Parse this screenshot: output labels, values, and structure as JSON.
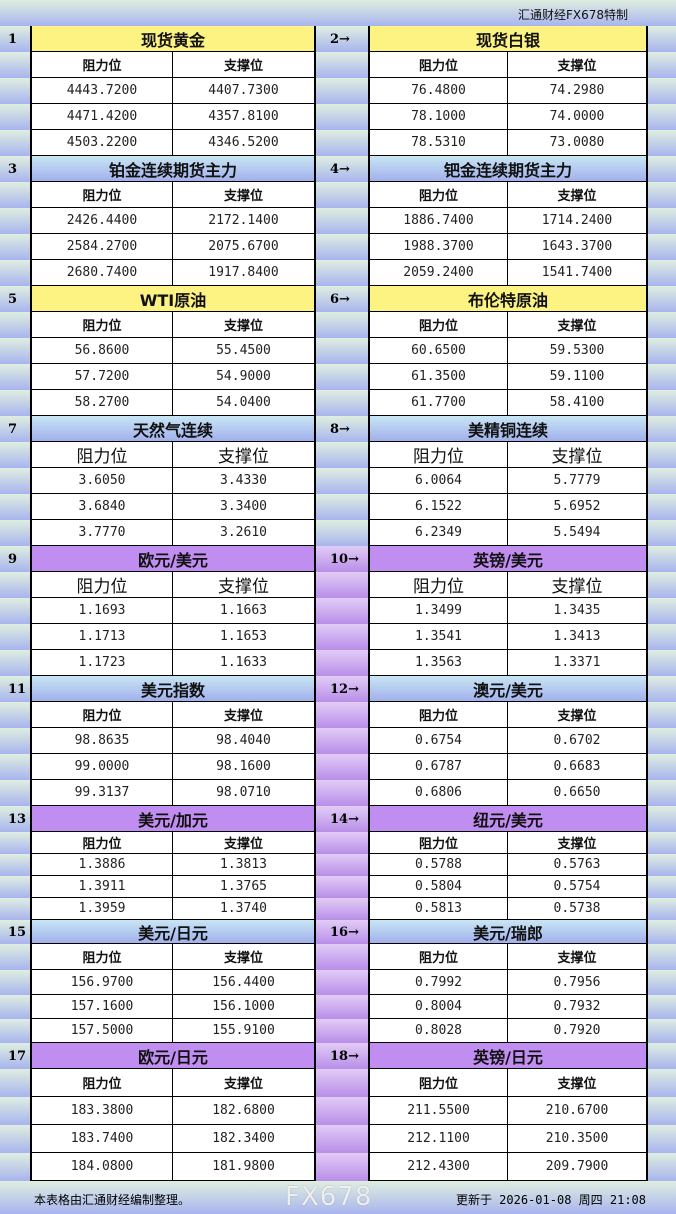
{
  "header": {
    "brand": "汇通财经FX678特制"
  },
  "col_headers": {
    "resistance": "阻力位",
    "support": "支撑位"
  },
  "sections": [
    {
      "num": "1",
      "title": "现货黄金",
      "color": "yellow",
      "rows": [
        [
          "4443.7200",
          "4407.7300"
        ],
        [
          "4471.4200",
          "4357.8100"
        ],
        [
          "4503.2200",
          "4346.5200"
        ]
      ]
    },
    {
      "num": "2→",
      "title": "现货白银",
      "color": "yellow",
      "rows": [
        [
          "76.4800",
          "74.2980"
        ],
        [
          "78.1000",
          "74.0000"
        ],
        [
          "78.5310",
          "73.0080"
        ]
      ]
    },
    {
      "num": "3",
      "title": "铂金连续期货主力",
      "color": "blue",
      "rows": [
        [
          "2426.4400",
          "2172.1400"
        ],
        [
          "2584.2700",
          "2075.6700"
        ],
        [
          "2680.7400",
          "1917.8400"
        ]
      ]
    },
    {
      "num": "4→",
      "title": "钯金连续期货主力",
      "color": "blue",
      "rows": [
        [
          "1886.7400",
          "1714.2400"
        ],
        [
          "1988.3700",
          "1643.3700"
        ],
        [
          "2059.2400",
          "1541.7400"
        ]
      ]
    },
    {
      "num": "5",
      "title": "WTI原油",
      "color": "yellow",
      "rows": [
        [
          "56.8600",
          "55.4500"
        ],
        [
          "57.7200",
          "54.9000"
        ],
        [
          "58.2700",
          "54.0400"
        ]
      ]
    },
    {
      "num": "6→",
      "title": "布伦特原油",
      "color": "yellow",
      "rows": [
        [
          "60.6500",
          "59.5300"
        ],
        [
          "61.3500",
          "59.1100"
        ],
        [
          "61.7700",
          "58.4100"
        ]
      ]
    },
    {
      "num": "7",
      "title": "天然气连续",
      "color": "blue",
      "rows": [
        [
          "3.6050",
          "3.4330"
        ],
        [
          "3.6840",
          "3.3400"
        ],
        [
          "3.7770",
          "3.2610"
        ]
      ]
    },
    {
      "num": "8→",
      "title": "美精铜连续",
      "color": "blue",
      "rows": [
        [
          "6.0064",
          "5.7779"
        ],
        [
          "6.1522",
          "5.6952"
        ],
        [
          "6.2349",
          "5.5494"
        ]
      ]
    },
    {
      "num": "9",
      "title": "欧元/美元",
      "color": "purple",
      "rows": [
        [
          "1.1693",
          "1.1663"
        ],
        [
          "1.1713",
          "1.1653"
        ],
        [
          "1.1723",
          "1.1633"
        ]
      ]
    },
    {
      "num": "10→",
      "title": "英镑/美元",
      "color": "purple",
      "rows": [
        [
          "1.3499",
          "1.3435"
        ],
        [
          "1.3541",
          "1.3413"
        ],
        [
          "1.3563",
          "1.3371"
        ]
      ]
    },
    {
      "num": "11",
      "title": "美元指数",
      "color": "blue",
      "rows": [
        [
          "98.8635",
          "98.4040"
        ],
        [
          "99.0000",
          "98.1600"
        ],
        [
          "99.3137",
          "98.0710"
        ]
      ]
    },
    {
      "num": "12→",
      "title": "澳元/美元",
      "color": "blue",
      "rows": [
        [
          "0.6754",
          "0.6702"
        ],
        [
          "0.6787",
          "0.6683"
        ],
        [
          "0.6806",
          "0.6650"
        ]
      ]
    },
    {
      "num": "13",
      "title": "美元/加元",
      "color": "purple",
      "rows": [
        [
          "1.3886",
          "1.3813"
        ],
        [
          "1.3911",
          "1.3765"
        ],
        [
          "1.3959",
          "1.3740"
        ]
      ]
    },
    {
      "num": "14→",
      "title": "纽元/美元",
      "color": "purple",
      "rows": [
        [
          "0.5788",
          "0.5763"
        ],
        [
          "0.5804",
          "0.5754"
        ],
        [
          "0.5813",
          "0.5738"
        ]
      ]
    },
    {
      "num": "15",
      "title": "美元/日元",
      "color": "blue",
      "rows": [
        [
          "156.9700",
          "156.4400"
        ],
        [
          "157.1600",
          "156.1000"
        ],
        [
          "157.5000",
          "155.9100"
        ]
      ]
    },
    {
      "num": "16→",
      "title": "美元/瑞郎",
      "color": "blue",
      "rows": [
        [
          "0.7992",
          "0.7956"
        ],
        [
          "0.8004",
          "0.7932"
        ],
        [
          "0.8028",
          "0.7920"
        ]
      ]
    },
    {
      "num": "17",
      "title": "欧元/日元",
      "color": "purple",
      "rows": [
        [
          "183.3800",
          "182.6800"
        ],
        [
          "183.7400",
          "182.3400"
        ],
        [
          "184.0800",
          "181.9800"
        ]
      ]
    },
    {
      "num": "18→",
      "title": "英镑/日元",
      "color": "purple",
      "rows": [
        [
          "211.5500",
          "210.6700"
        ],
        [
          "212.1100",
          "210.3500"
        ],
        [
          "212.4300",
          "209.7900"
        ]
      ]
    }
  ],
  "footer": {
    "note": "本表格由汇通财经编制整理。",
    "updated": "更新于 2026-01-08 周四 21:08"
  },
  "watermark": "FX678"
}
